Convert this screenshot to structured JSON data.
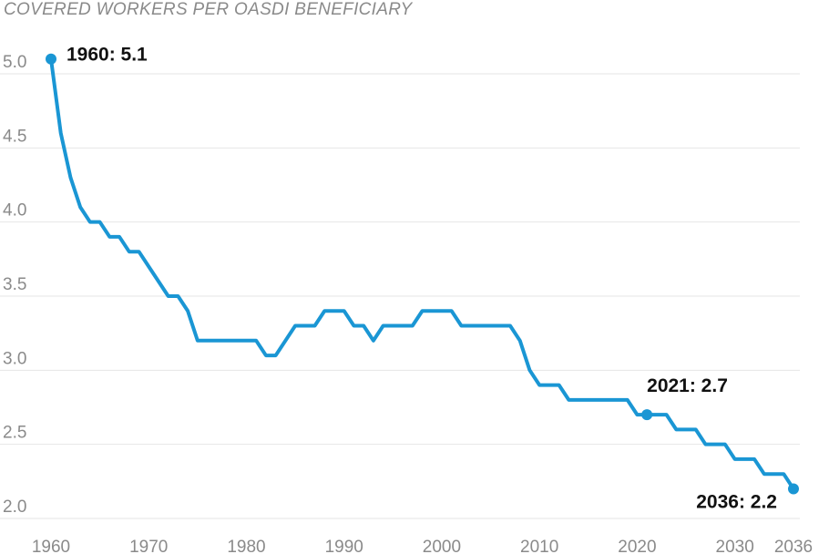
{
  "chart_data": {
    "type": "line",
    "title": "",
    "ylabel": "COVERED WORKERS PER OASDI BENEFICIARY",
    "xlabel": "",
    "xlim": [
      1960,
      2036
    ],
    "ylim": [
      2.0,
      5.0
    ],
    "grid": true,
    "x_ticks": [
      "1960",
      "1970",
      "1980",
      "1990",
      "2000",
      "2010",
      "2020",
      "2030",
      "2036"
    ],
    "y_ticks": [
      "5.0",
      "4.5",
      "4.0",
      "3.5",
      "3.0",
      "2.5",
      "2.0"
    ],
    "colors": {
      "line": "#1a96d4",
      "grid": "#e6e6e6",
      "tick": "#8a8a8a",
      "annotation": "#111111"
    },
    "series": [
      {
        "x": [
          1960,
          1961,
          1962,
          1963,
          1964,
          1965,
          1966,
          1967,
          1968,
          1969,
          1970,
          1971,
          1972,
          1973,
          1974,
          1975,
          1976,
          1977,
          1978,
          1979,
          1980,
          1981,
          1982,
          1983,
          1984,
          1985,
          1986,
          1987,
          1988,
          1989,
          1990,
          1991,
          1992,
          1993,
          1994,
          1995,
          1996,
          1997,
          1998,
          1999,
          2000,
          2001,
          2002,
          2003,
          2004,
          2005,
          2006,
          2007,
          2008,
          2009,
          2010,
          2011,
          2012,
          2013,
          2014,
          2015,
          2016,
          2017,
          2018,
          2019,
          2020,
          2021,
          2022,
          2023,
          2024,
          2025,
          2026,
          2027,
          2028,
          2029,
          2030,
          2031,
          2032,
          2033,
          2034,
          2035,
          2036
        ],
        "y": [
          5.1,
          4.6,
          4.3,
          4.1,
          4.0,
          4.0,
          3.9,
          3.9,
          3.8,
          3.8,
          3.7,
          3.6,
          3.5,
          3.5,
          3.4,
          3.2,
          3.2,
          3.2,
          3.2,
          3.2,
          3.2,
          3.2,
          3.1,
          3.1,
          3.2,
          3.3,
          3.3,
          3.3,
          3.4,
          3.4,
          3.4,
          3.3,
          3.3,
          3.2,
          3.3,
          3.3,
          3.3,
          3.3,
          3.4,
          3.4,
          3.4,
          3.4,
          3.3,
          3.3,
          3.3,
          3.3,
          3.3,
          3.3,
          3.2,
          3.0,
          2.9,
          2.9,
          2.9,
          2.8,
          2.8,
          2.8,
          2.8,
          2.8,
          2.8,
          2.8,
          2.7,
          2.7,
          2.7,
          2.7,
          2.6,
          2.6,
          2.6,
          2.5,
          2.5,
          2.5,
          2.4,
          2.4,
          2.4,
          2.3,
          2.3,
          2.3,
          2.2
        ]
      }
    ],
    "annotations": [
      {
        "x": 1960,
        "y": 5.1,
        "label": "1960: 5.1",
        "anchor": "right"
      },
      {
        "x": 2021,
        "y": 2.7,
        "label": "2021: 2.7",
        "anchor": "above"
      },
      {
        "x": 2036,
        "y": 2.2,
        "label": "2036: 2.2",
        "anchor": "below-left"
      }
    ]
  }
}
